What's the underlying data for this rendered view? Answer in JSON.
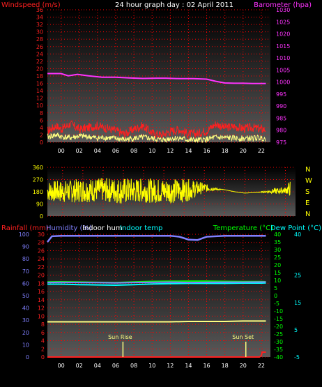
{
  "page_title": "24 hour graph day : 02 April 2011",
  "colors": {
    "wind": "#ff2020",
    "gust": "#ffff80",
    "barometer": "#ff33ff",
    "direction": "#ffff00",
    "rain": "#ff2020",
    "humidity": "#8080ff",
    "indoor_hum": "#ffffff",
    "indoor_temp": "#00ffff",
    "temperature": "#00ff00",
    "dew_point": "#00ffff",
    "sun_marker": "#ffff80",
    "grid": "#ff0000",
    "hours": "#ffffff",
    "direction_labels": "#ffff00"
  },
  "hour_labels": [
    "00",
    "02",
    "04",
    "06",
    "08",
    "10",
    "12",
    "14",
    "16",
    "18",
    "20",
    "22"
  ],
  "chart_data": [
    {
      "type": "line",
      "id": "wind_barometer",
      "left_label": "Windspeed (m/s)",
      "right_label": "Barometer (hpa)",
      "y_left": {
        "range": [
          0,
          36
        ],
        "ticks": [
          0,
          2,
          4,
          6,
          8,
          10,
          12,
          14,
          16,
          18,
          20,
          22,
          24,
          26,
          28,
          30,
          32,
          34,
          36
        ]
      },
      "y_right": {
        "range": [
          975,
          1030
        ],
        "ticks": [
          975,
          980,
          985,
          990,
          995,
          1000,
          1005,
          1010,
          1015,
          1020,
          1025,
          1030
        ]
      },
      "series": [
        {
          "key": "barometer",
          "axis": "right",
          "x": [
            -1.5,
            0,
            0.8,
            1.8,
            3,
            4.5,
            6,
            7.5,
            9,
            10.5,
            11.5,
            13,
            14.5,
            16,
            17,
            18,
            19,
            20,
            21,
            22.5
          ],
          "values": [
            1003.5,
            1003.5,
            1002.6,
            1003.2,
            1002.6,
            1002,
            1002,
            1001.7,
            1001.5,
            1001.6,
            1001.6,
            1001.4,
            1001.4,
            1001.2,
            1000.3,
            999.6,
            999.5,
            999.5,
            999.4,
            999.4
          ]
        },
        {
          "key": "wind",
          "axis": "left",
          "x": [
            -1.5,
            -0.5,
            0,
            1,
            2,
            3,
            4,
            5,
            6,
            7,
            8,
            9,
            10,
            11,
            12,
            13,
            14,
            15,
            16,
            17,
            18,
            19,
            20,
            21,
            22,
            22.5
          ],
          "values": [
            3,
            4.5,
            3.5,
            5,
            3.5,
            4,
            4.5,
            3.8,
            3.2,
            2.2,
            3.6,
            4.5,
            2.5,
            2,
            3,
            3.5,
            2.2,
            2.4,
            3.2,
            5,
            4,
            4.3,
            3.7,
            4,
            3.6,
            3.5
          ]
        },
        {
          "key": "gust",
          "axis": "left",
          "x": [
            -1.5,
            -0.5,
            0,
            1,
            2,
            3,
            4,
            5,
            6,
            7,
            8,
            9,
            10,
            11,
            12,
            13,
            14,
            15,
            16,
            17,
            18,
            19,
            20,
            21,
            22,
            22.5
          ],
          "values": [
            1.4,
            2,
            1.5,
            1.2,
            1.7,
            1.5,
            1.1,
            1.3,
            1,
            0.7,
            1.1,
            1.3,
            1,
            0.6,
            1,
            1.1,
            0.6,
            0.5,
            0.8,
            1.3,
            1.2,
            1.1,
            1,
            1.1,
            1.2,
            1
          ]
        }
      ]
    },
    {
      "type": "line",
      "id": "wind_direction",
      "y_left": {
        "range": [
          0,
          360
        ],
        "ticks": [
          0,
          90,
          180,
          270,
          360
        ]
      },
      "direction_labels": [
        "N",
        "W",
        "S",
        "E",
        "N"
      ],
      "series": [
        {
          "key": "direction",
          "axis": "left",
          "x": [
            -1.5,
            0,
            2,
            4,
            6,
            8,
            10,
            12,
            13,
            14,
            15,
            16,
            17,
            18,
            19,
            20,
            21,
            22,
            22.5
          ],
          "values": [
            185,
            180,
            190,
            195,
            185,
            190,
            185,
            190,
            200,
            210,
            200,
            195,
            180,
            170,
            175,
            180,
            185,
            190,
            205
          ],
          "band": [
            -1.5,
            70,
            0,
            75,
            2,
            80,
            4,
            80,
            6,
            90,
            8,
            80,
            10,
            85,
            12,
            80,
            13,
            60,
            14,
            30,
            15,
            10,
            16,
            0,
            17,
            0,
            18,
            0,
            19,
            0,
            20,
            5,
            21,
            20,
            22,
            20,
            22.5,
            55
          ]
        }
      ]
    },
    {
      "type": "line",
      "id": "rain_hum_temp",
      "labels": [
        "Rainfall (mm)",
        "Humidity (%)",
        "Indoor hum",
        "Indoor temp",
        "Temperature (°C)",
        "Dew Point (°C)"
      ],
      "y_rain": {
        "range": [
          0,
          100
        ],
        "ticks": [
          0,
          10,
          20,
          30,
          40,
          50,
          60,
          70,
          80,
          90,
          100
        ]
      },
      "y_hum": {
        "range": [
          0,
          30
        ],
        "ticks": [
          0,
          2,
          4,
          6,
          8,
          10,
          12,
          14,
          16,
          18,
          20,
          22,
          24,
          26,
          28,
          30
        ]
      },
      "y_temp": {
        "range": [
          -40,
          40
        ],
        "ticks": [
          -40,
          -35,
          -30,
          -25,
          -20,
          -15,
          -10,
          -5,
          0,
          5,
          10,
          15,
          20,
          25,
          30,
          35,
          40
        ]
      },
      "y_dew": {
        "range": [
          -5,
          40
        ],
        "ticks": [
          -5,
          5,
          15,
          25,
          40
        ]
      },
      "sun_events": [
        {
          "label": "Sun Rise",
          "x": 6.8
        },
        {
          "label": "Sun Set",
          "x": 20.3
        }
      ],
      "series": [
        {
          "key": "humidity",
          "axis": "hum",
          "x": [
            -1.5,
            -1,
            0,
            2,
            4,
            6,
            8,
            10,
            12,
            13,
            14,
            15,
            16,
            18,
            20,
            22,
            22.5
          ],
          "values": [
            28.1,
            29.5,
            29.6,
            29.6,
            29.6,
            29.6,
            29.6,
            29.6,
            29.6,
            29.4,
            28.7,
            28.6,
            29.4,
            29.6,
            29.6,
            29.6,
            29.6
          ]
        },
        {
          "key": "indoor_hum",
          "axis": "hum",
          "x": [
            -1.5,
            0,
            2,
            4,
            6,
            8,
            10,
            12,
            14,
            16,
            18,
            20,
            22,
            22.5
          ],
          "values": [
            8.6,
            8.6,
            8.6,
            8.6,
            8.6,
            8.6,
            8.6,
            8.6,
            8.7,
            8.7,
            8.7,
            8.8,
            8.8,
            8.8
          ]
        },
        {
          "key": "indoor_temp",
          "axis": "temp",
          "x": [
            -1.5,
            0,
            2,
            4,
            6,
            8,
            10,
            12,
            14,
            16,
            18,
            20,
            22,
            22.5
          ],
          "values": [
            7.5,
            7.5,
            7.2,
            7,
            6.8,
            7.2,
            7.6,
            7.8,
            8,
            8,
            8,
            8.2,
            8.2,
            8.3
          ]
        },
        {
          "key": "temperature",
          "axis": "temp",
          "x": [
            -1.5,
            0,
            2,
            4,
            6,
            8,
            10,
            12,
            14,
            16,
            18,
            20,
            22,
            22.5
          ],
          "values": [
            9,
            9.1,
            8.9,
            8.7,
            8.5,
            9,
            9.3,
            9.4,
            9.5,
            9.5,
            9.3,
            9.2,
            9.2,
            9.1
          ]
        },
        {
          "key": "dew_point",
          "axis": "temp",
          "x": [
            -1.5,
            0,
            2,
            4,
            6,
            8,
            10,
            12,
            14,
            16,
            18,
            20,
            22,
            22.5
          ],
          "values": [
            8.6,
            8.7,
            8.6,
            8.5,
            8.3,
            8.6,
            8.7,
            8.8,
            8.6,
            8.7,
            8.8,
            8.8,
            8.9,
            8.9
          ]
        },
        {
          "key": "rain",
          "axis": "rain",
          "x": [
            -1.5,
            21.8,
            22,
            22.1,
            22.5
          ],
          "values": [
            0,
            0,
            1,
            4,
            4
          ]
        }
      ]
    }
  ]
}
